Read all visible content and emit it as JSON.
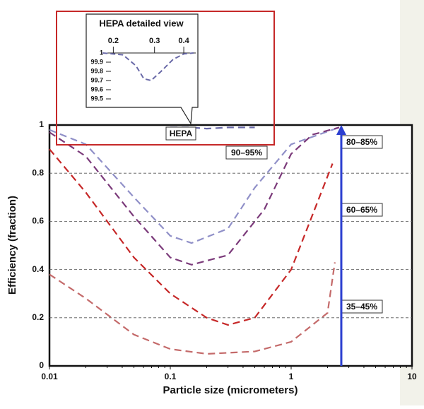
{
  "chart_data": [
    {
      "type": "line",
      "xlabel": "Particle size (micrometers)",
      "ylabel": "Efficiency (fraction)",
      "xlog": true,
      "xlim": [
        0.01,
        10
      ],
      "xticks": [
        0.01,
        0.1,
        1,
        10
      ],
      "ylim": [
        0,
        1
      ],
      "yticks": [
        0,
        0.2,
        0.4,
        0.6,
        0.8,
        1
      ],
      "grid": true,
      "series": [
        {
          "name": "HEPA",
          "color": "#6a6aa8",
          "x": [
            0.1,
            0.15,
            0.2,
            0.3,
            0.5
          ],
          "values": [
            0.99,
            0.99,
            0.985,
            0.99,
            0.99
          ]
        },
        {
          "name": "90–95%",
          "color": "#9090c8",
          "x": [
            0.01,
            0.02,
            0.05,
            0.1,
            0.15,
            0.3,
            0.5,
            1,
            2.5
          ],
          "values": [
            0.98,
            0.92,
            0.7,
            0.54,
            0.51,
            0.57,
            0.74,
            0.92,
            0.99
          ]
        },
        {
          "name": "80–85%",
          "color": "#7b3a7a",
          "x": [
            0.01,
            0.02,
            0.05,
            0.1,
            0.15,
            0.3,
            0.6,
            1,
            1.5,
            2.5
          ],
          "values": [
            0.97,
            0.87,
            0.62,
            0.45,
            0.42,
            0.46,
            0.65,
            0.88,
            0.96,
            0.99
          ]
        },
        {
          "name": "60–65%",
          "color": "#c62828",
          "x": [
            0.01,
            0.02,
            0.05,
            0.1,
            0.2,
            0.3,
            0.5,
            1,
            2.2
          ],
          "values": [
            0.9,
            0.72,
            0.45,
            0.3,
            0.2,
            0.17,
            0.2,
            0.4,
            0.84
          ]
        },
        {
          "name": "35–45%",
          "color": "#c46a6a",
          "x": [
            0.01,
            0.02,
            0.05,
            0.1,
            0.2,
            0.5,
            1,
            2,
            2.3
          ],
          "values": [
            0.38,
            0.28,
            0.13,
            0.07,
            0.05,
            0.06,
            0.1,
            0.22,
            0.43
          ]
        }
      ],
      "arrow_x": 2.6,
      "arrow_color": "#2c3fd0"
    },
    {
      "type": "line",
      "title": "HEPA detailed view",
      "xlog": true,
      "xlim": [
        0.17,
        0.45
      ],
      "xticks": [
        0.2,
        0.3,
        0.4
      ],
      "ylim": [
        99.5,
        100
      ],
      "yticks": [
        {
          "value": 100,
          "label": "1"
        },
        99.9,
        99.8,
        99.7,
        99.6,
        99.5
      ],
      "series": [
        {
          "color": "#6a6aa8",
          "x": [
            0.18,
            0.22,
            0.25,
            0.27,
            0.29,
            0.32,
            0.36,
            0.4,
            0.44
          ],
          "values": [
            100,
            99.98,
            99.86,
            99.72,
            99.7,
            99.8,
            99.93,
            99.99,
            100
          ]
        }
      ]
    }
  ]
}
